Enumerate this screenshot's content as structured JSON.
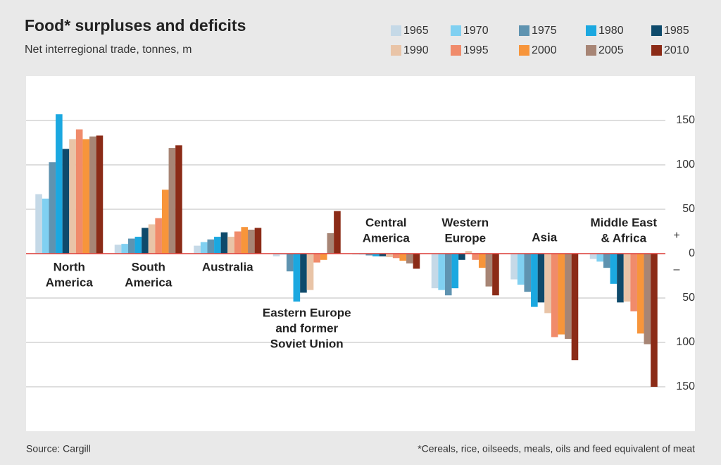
{
  "chart_data": {
    "type": "bar",
    "title": "Food* surpluses and deficits",
    "subtitle": "Net interregional trade, tonnes, m",
    "source": "Source: Cargill",
    "footnote": "*Cereals, rice, oilseeds, meals, oils and feed equivalent of meat",
    "positive_sign": "+",
    "negative_sign": "–",
    "categories": [
      [
        "North",
        "America"
      ],
      [
        "South",
        "America"
      ],
      [
        "Australia"
      ],
      [
        "Eastern Europe",
        "and former",
        "Soviet Union"
      ],
      [
        "Central",
        "America"
      ],
      [
        "Western",
        "Europe"
      ],
      [
        "Asia"
      ],
      [
        "Middle East",
        "& Africa"
      ]
    ],
    "series": [
      {
        "name": "1965",
        "color": "#c5d9e7",
        "values": [
          67,
          10,
          9,
          -3,
          -1,
          -39,
          -29,
          -6
        ]
      },
      {
        "name": "1970",
        "color": "#80d0f1",
        "values": [
          62,
          11,
          13,
          -1,
          -1,
          -41,
          -35,
          -9
        ]
      },
      {
        "name": "1975",
        "color": "#5f93b0",
        "values": [
          103,
          17,
          16,
          -20,
          -2,
          -47,
          -43,
          -16
        ]
      },
      {
        "name": "1980",
        "color": "#1ba8e0",
        "values": [
          157,
          19,
          19,
          -54,
          -3,
          -39,
          -60,
          -34
        ]
      },
      {
        "name": "1985",
        "color": "#0e4a6b",
        "values": [
          118,
          29,
          24,
          -44,
          -3,
          -7,
          -55,
          -55
        ]
      },
      {
        "name": "1990",
        "color": "#e9c4a7",
        "values": [
          129,
          33,
          19,
          -41,
          -4,
          3,
          -67,
          -54
        ]
      },
      {
        "name": "1995",
        "color": "#f08b6b",
        "values": [
          140,
          40,
          25,
          -10,
          -5,
          -7,
          -94,
          -65
        ]
      },
      {
        "name": "2000",
        "color": "#f7953b",
        "values": [
          129,
          72,
          30,
          -7,
          -8,
          -16,
          -91,
          -90
        ]
      },
      {
        "name": "2005",
        "color": "#a78575",
        "values": [
          132,
          119,
          27,
          23,
          -11,
          -37,
          -96,
          -102
        ]
      },
      {
        "name": "2010",
        "color": "#8b2b17",
        "values": [
          133,
          122,
          29,
          48,
          -17,
          -47,
          -120,
          -150
        ]
      }
    ],
    "ylim": [
      -200,
      200
    ],
    "yticks": [
      {
        "value": -150,
        "label": "150"
      },
      {
        "value": -100,
        "label": "100"
      },
      {
        "value": -50,
        "label": "50"
      },
      0,
      50,
      100,
      150
    ],
    "grid": true,
    "zero_line_color": "#e0403a"
  }
}
